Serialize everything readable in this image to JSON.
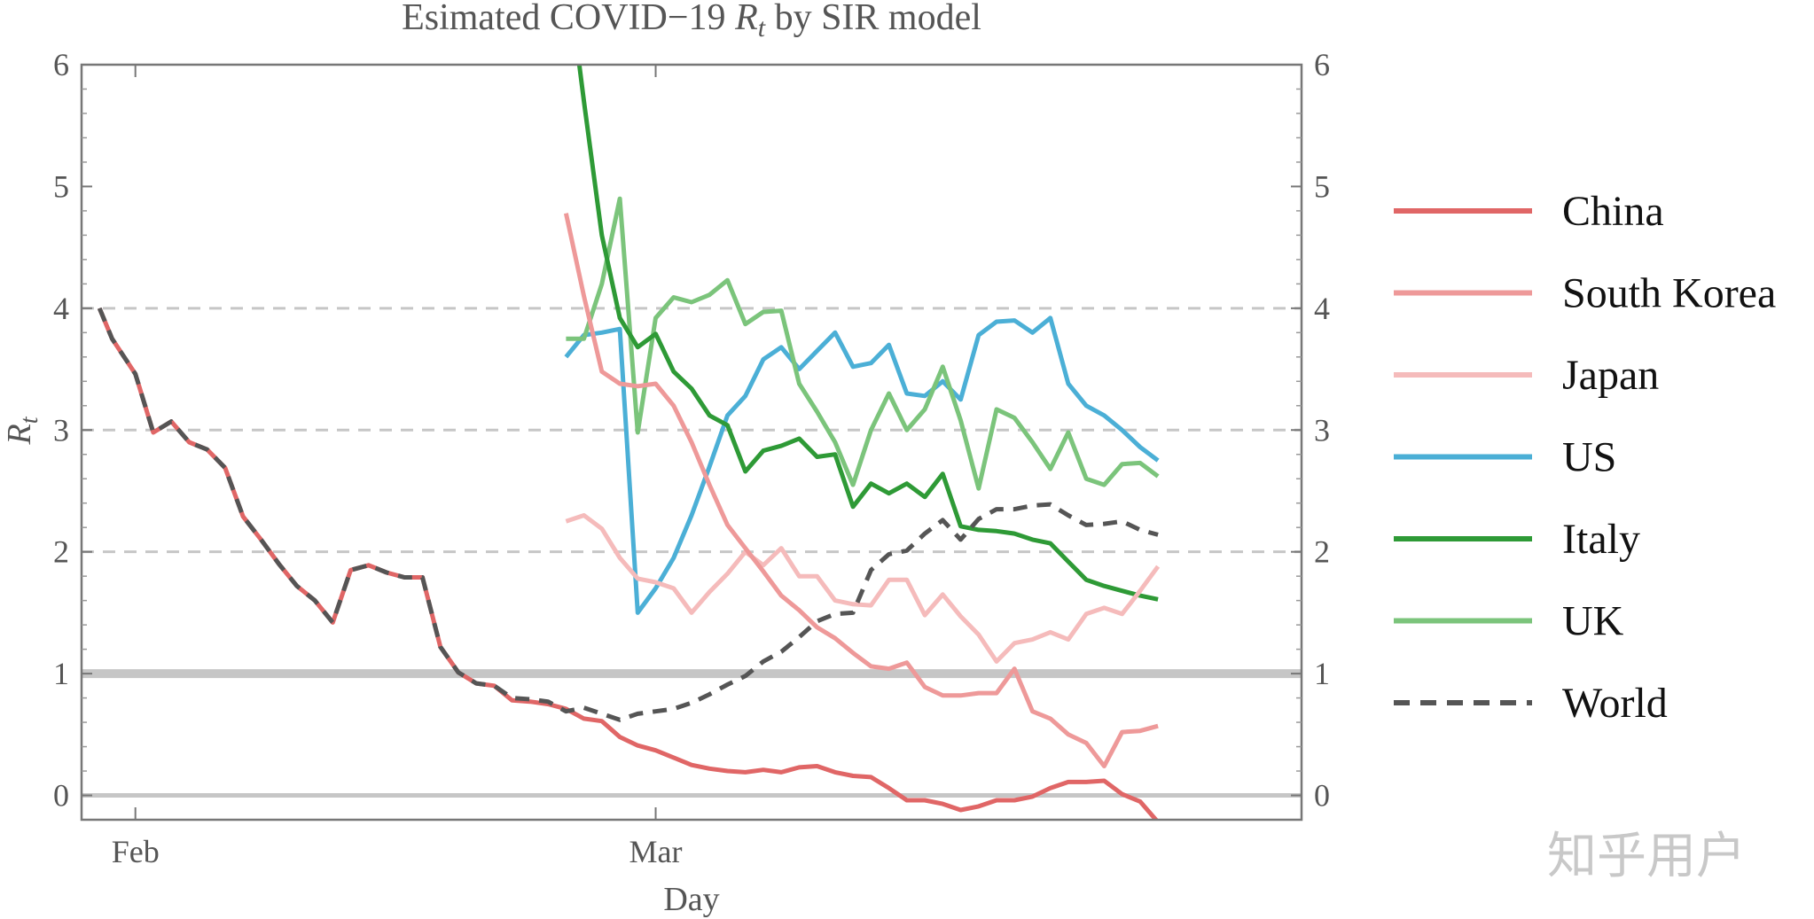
{
  "chart_data": {
    "type": "line",
    "title": {
      "prefix": "Esimated COVID−19 ",
      "symbol": "R",
      "subscript": "t",
      "suffix": " by SIR model"
    },
    "xlabel": "Day",
    "ylabel": {
      "symbol": "R",
      "subscript": "t"
    },
    "xlim": [
      -3,
      65
    ],
    "ylim": [
      -0.2,
      6
    ],
    "yticks": [
      "0",
      "1",
      "2",
      "3",
      "4",
      "5",
      "6"
    ],
    "xticks": [
      {
        "day": 0,
        "label": "Feb"
      },
      {
        "day": 29,
        "label": "Mar"
      }
    ],
    "x_units": "days from Feb 1",
    "grid": "dashed at 2, 3, 4; solid reference lines at 0 and 1",
    "legend_position": "right",
    "colors": {
      "China": "#e06666",
      "South Korea": "#ee9999",
      "Japan": "#f5bbbb",
      "US": "#4bafd6",
      "Italy": "#2e9a36",
      "UK": "#7bc47b",
      "World": "#555555"
    },
    "series": [
      {
        "name": "China",
        "dash": false,
        "points": [
          [
            -2,
            4.0
          ],
          [
            -1.3,
            3.75
          ],
          [
            0,
            3.46
          ],
          [
            1,
            2.98
          ],
          [
            2,
            3.07
          ],
          [
            3,
            2.9
          ],
          [
            4,
            2.84
          ],
          [
            5,
            2.69
          ],
          [
            6,
            2.29
          ],
          [
            7,
            2.1
          ],
          [
            8,
            1.9
          ],
          [
            9,
            1.72
          ],
          [
            10,
            1.6
          ],
          [
            11,
            1.42
          ],
          [
            12,
            1.85
          ],
          [
            13,
            1.89
          ],
          [
            14,
            1.83
          ],
          [
            15,
            1.79
          ],
          [
            16,
            1.79
          ],
          [
            17,
            1.22
          ],
          [
            18,
            1.01
          ],
          [
            19,
            0.92
          ],
          [
            20,
            0.9
          ],
          [
            21,
            0.78
          ],
          [
            22,
            0.77
          ],
          [
            23,
            0.75
          ],
          [
            24,
            0.71
          ],
          [
            25,
            0.63
          ],
          [
            26,
            0.61
          ],
          [
            27,
            0.48
          ],
          [
            28,
            0.41
          ],
          [
            29,
            0.37
          ],
          [
            30,
            0.31
          ],
          [
            31,
            0.25
          ],
          [
            32,
            0.22
          ],
          [
            33,
            0.2
          ],
          [
            34,
            0.19
          ],
          [
            35,
            0.21
          ],
          [
            36,
            0.19
          ],
          [
            37,
            0.23
          ],
          [
            38,
            0.24
          ],
          [
            39,
            0.19
          ],
          [
            40,
            0.16
          ],
          [
            41,
            0.15
          ],
          [
            42,
            0.06
          ],
          [
            43,
            -0.04
          ],
          [
            44,
            -0.04
          ],
          [
            45,
            -0.07
          ],
          [
            46,
            -0.12
          ],
          [
            47,
            -0.09
          ],
          [
            48,
            -0.04
          ],
          [
            49,
            -0.04
          ],
          [
            50,
            -0.01
          ],
          [
            51,
            0.06
          ],
          [
            52,
            0.11
          ],
          [
            53,
            0.11
          ],
          [
            54,
            0.12
          ],
          [
            55,
            0.01
          ],
          [
            56,
            -0.05
          ],
          [
            57,
            -0.22
          ]
        ]
      },
      {
        "name": "South Korea",
        "dash": false,
        "points": [
          [
            24,
            4.78
          ],
          [
            25,
            4.1
          ],
          [
            26,
            3.48
          ],
          [
            27,
            3.38
          ],
          [
            28,
            3.36
          ],
          [
            29,
            3.38
          ],
          [
            30,
            3.2
          ],
          [
            31,
            2.9
          ],
          [
            32,
            2.55
          ],
          [
            33,
            2.22
          ],
          [
            34,
            2.03
          ],
          [
            35,
            1.84
          ],
          [
            36,
            1.64
          ],
          [
            37,
            1.52
          ],
          [
            38,
            1.38
          ],
          [
            39,
            1.29
          ],
          [
            40,
            1.17
          ],
          [
            41,
            1.06
          ],
          [
            42,
            1.04
          ],
          [
            43,
            1.09
          ],
          [
            44,
            0.89
          ],
          [
            45,
            0.82
          ],
          [
            46,
            0.82
          ],
          [
            47,
            0.84
          ],
          [
            48,
            0.84
          ],
          [
            49,
            1.04
          ],
          [
            50,
            0.69
          ],
          [
            51,
            0.63
          ],
          [
            52,
            0.5
          ],
          [
            53,
            0.43
          ],
          [
            54,
            0.24
          ],
          [
            55,
            0.52
          ],
          [
            56,
            0.53
          ],
          [
            57,
            0.57
          ]
        ]
      },
      {
        "name": "Japan",
        "dash": false,
        "points": [
          [
            24,
            2.25
          ],
          [
            25,
            2.3
          ],
          [
            26,
            2.19
          ],
          [
            27,
            1.95
          ],
          [
            28,
            1.78
          ],
          [
            29,
            1.75
          ],
          [
            30,
            1.7
          ],
          [
            31,
            1.5
          ],
          [
            32,
            1.67
          ],
          [
            33,
            1.82
          ],
          [
            34,
            2.0
          ],
          [
            35,
            1.89
          ],
          [
            36,
            2.03
          ],
          [
            37,
            1.8
          ],
          [
            38,
            1.8
          ],
          [
            39,
            1.6
          ],
          [
            40,
            1.57
          ],
          [
            41,
            1.56
          ],
          [
            42,
            1.77
          ],
          [
            43,
            1.77
          ],
          [
            44,
            1.48
          ],
          [
            45,
            1.65
          ],
          [
            46,
            1.47
          ],
          [
            47,
            1.32
          ],
          [
            48,
            1.1
          ],
          [
            49,
            1.25
          ],
          [
            50,
            1.28
          ],
          [
            51,
            1.34
          ],
          [
            52,
            1.28
          ],
          [
            53,
            1.49
          ],
          [
            54,
            1.54
          ],
          [
            55,
            1.49
          ],
          [
            56,
            1.68
          ],
          [
            57,
            1.88
          ]
        ]
      },
      {
        "name": "US",
        "dash": false,
        "points": [
          [
            24,
            3.6
          ],
          [
            25,
            3.78
          ],
          [
            26,
            3.8
          ],
          [
            27,
            3.83
          ],
          [
            28,
            1.5
          ],
          [
            29,
            1.7
          ],
          [
            30,
            1.95
          ],
          [
            31,
            2.3
          ],
          [
            32,
            2.7
          ],
          [
            33,
            3.12
          ],
          [
            34,
            3.28
          ],
          [
            35,
            3.58
          ],
          [
            36,
            3.68
          ],
          [
            37,
            3.5
          ],
          [
            38,
            3.65
          ],
          [
            39,
            3.8
          ],
          [
            40,
            3.52
          ],
          [
            41,
            3.55
          ],
          [
            42,
            3.7
          ],
          [
            43,
            3.3
          ],
          [
            44,
            3.28
          ],
          [
            45,
            3.4
          ],
          [
            46,
            3.25
          ],
          [
            47,
            3.78
          ],
          [
            48,
            3.89
          ],
          [
            49,
            3.9
          ],
          [
            50,
            3.8
          ],
          [
            51,
            3.92
          ],
          [
            52,
            3.38
          ],
          [
            53,
            3.2
          ],
          [
            54,
            3.12
          ],
          [
            55,
            3.0
          ],
          [
            56,
            2.86
          ],
          [
            57,
            2.75
          ]
        ]
      },
      {
        "name": "Italy",
        "dash": false,
        "points": [
          [
            24.7,
            6.05
          ],
          [
            25,
            5.7
          ],
          [
            26,
            4.6
          ],
          [
            27,
            3.92
          ],
          [
            28,
            3.68
          ],
          [
            29,
            3.79
          ],
          [
            30,
            3.48
          ],
          [
            31,
            3.34
          ],
          [
            32,
            3.12
          ],
          [
            33,
            3.04
          ],
          [
            34,
            2.66
          ],
          [
            35,
            2.83
          ],
          [
            36,
            2.87
          ],
          [
            37,
            2.93
          ],
          [
            38,
            2.78
          ],
          [
            39,
            2.8
          ],
          [
            40,
            2.37
          ],
          [
            41,
            2.56
          ],
          [
            42,
            2.48
          ],
          [
            43,
            2.56
          ],
          [
            44,
            2.45
          ],
          [
            45,
            2.64
          ],
          [
            46,
            2.21
          ],
          [
            47,
            2.18
          ],
          [
            48,
            2.17
          ],
          [
            49,
            2.15
          ],
          [
            50,
            2.1
          ],
          [
            51,
            2.07
          ],
          [
            52,
            1.92
          ],
          [
            53,
            1.77
          ],
          [
            54,
            1.72
          ],
          [
            55,
            1.68
          ],
          [
            56,
            1.64
          ],
          [
            57,
            1.61
          ]
        ]
      },
      {
        "name": "UK",
        "dash": false,
        "points": [
          [
            24,
            3.75
          ],
          [
            25,
            3.75
          ],
          [
            26,
            4.2
          ],
          [
            27,
            4.9
          ],
          [
            28,
            2.98
          ],
          [
            29,
            3.92
          ],
          [
            30,
            4.09
          ],
          [
            31,
            4.05
          ],
          [
            32,
            4.11
          ],
          [
            33,
            4.23
          ],
          [
            34,
            3.87
          ],
          [
            35,
            3.97
          ],
          [
            36,
            3.98
          ],
          [
            37,
            3.38
          ],
          [
            38,
            3.15
          ],
          [
            39,
            2.9
          ],
          [
            40,
            2.55
          ],
          [
            41,
            3.0
          ],
          [
            42,
            3.3
          ],
          [
            43,
            3.0
          ],
          [
            44,
            3.17
          ],
          [
            45,
            3.52
          ],
          [
            46,
            3.08
          ],
          [
            47,
            2.52
          ],
          [
            48,
            3.17
          ],
          [
            49,
            3.1
          ],
          [
            50,
            2.9
          ],
          [
            51,
            2.68
          ],
          [
            52,
            2.98
          ],
          [
            53,
            2.6
          ],
          [
            54,
            2.55
          ],
          [
            55,
            2.72
          ],
          [
            56,
            2.73
          ],
          [
            57,
            2.62
          ]
        ]
      },
      {
        "name": "World",
        "dash": true,
        "points": [
          [
            -2,
            4.0
          ],
          [
            -1.3,
            3.75
          ],
          [
            0,
            3.46
          ],
          [
            1,
            2.98
          ],
          [
            2,
            3.07
          ],
          [
            3,
            2.9
          ],
          [
            4,
            2.84
          ],
          [
            5,
            2.69
          ],
          [
            6,
            2.29
          ],
          [
            7,
            2.1
          ],
          [
            8,
            1.9
          ],
          [
            9,
            1.72
          ],
          [
            10,
            1.6
          ],
          [
            11,
            1.42
          ],
          [
            12,
            1.85
          ],
          [
            13,
            1.89
          ],
          [
            14,
            1.83
          ],
          [
            15,
            1.79
          ],
          [
            16,
            1.79
          ],
          [
            17,
            1.22
          ],
          [
            18,
            1.01
          ],
          [
            19,
            0.92
          ],
          [
            20,
            0.9
          ],
          [
            21,
            0.8
          ],
          [
            22,
            0.79
          ],
          [
            23,
            0.77
          ],
          [
            24,
            0.69
          ],
          [
            25,
            0.72
          ],
          [
            26,
            0.67
          ],
          [
            27,
            0.62
          ],
          [
            28,
            0.67
          ],
          [
            29,
            0.69
          ],
          [
            30,
            0.71
          ],
          [
            31,
            0.76
          ],
          [
            32,
            0.83
          ],
          [
            33,
            0.91
          ],
          [
            34,
            0.98
          ],
          [
            35,
            1.1
          ],
          [
            36,
            1.18
          ],
          [
            37,
            1.3
          ],
          [
            38,
            1.43
          ],
          [
            39,
            1.49
          ],
          [
            40,
            1.5
          ],
          [
            41,
            1.85
          ],
          [
            42,
            1.98
          ],
          [
            43,
            2.01
          ],
          [
            44,
            2.15
          ],
          [
            45,
            2.26
          ],
          [
            46,
            2.1
          ],
          [
            47,
            2.27
          ],
          [
            48,
            2.35
          ],
          [
            49,
            2.35
          ],
          [
            50,
            2.38
          ],
          [
            51,
            2.39
          ],
          [
            52,
            2.3
          ],
          [
            53,
            2.22
          ],
          [
            54,
            2.23
          ],
          [
            55,
            2.25
          ],
          [
            56,
            2.18
          ],
          [
            57,
            2.14
          ]
        ]
      }
    ]
  },
  "watermark": "知乎用户"
}
